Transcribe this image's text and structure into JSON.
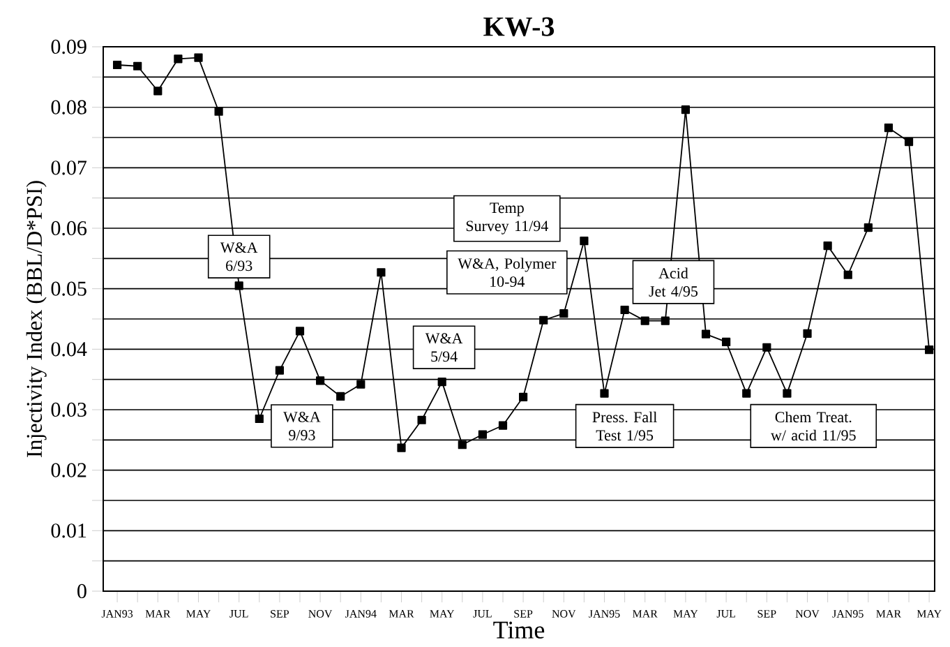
{
  "chart_data": {
    "type": "line",
    "title": "KW-3",
    "xlabel": "Time",
    "ylabel": "Injectivity Index (BBL/D*PSI)",
    "categories": [
      "JAN93",
      null,
      "MAR",
      null,
      "MAY",
      null,
      "JUL",
      null,
      "SEP",
      null,
      "NOV",
      null,
      "JAN94",
      null,
      "MAR",
      null,
      "MAY",
      null,
      "JUL",
      null,
      "SEP",
      null,
      "NOV",
      null,
      "JAN95",
      null,
      "MAR",
      null,
      "MAY",
      null,
      "JUL",
      null,
      "SEP",
      null,
      "NOV",
      null,
      "JAN95",
      null,
      "MAR",
      null,
      "MAY"
    ],
    "series": [
      {
        "color": "#000000",
        "values": [
          0.087,
          0.0868,
          0.0827,
          0.088,
          0.0882,
          0.0793,
          0.0505,
          0.0285,
          0.0365,
          0.043,
          0.0348,
          0.0322,
          0.0342,
          0.0527,
          0.0237,
          0.0283,
          0.0346,
          0.0242,
          0.0259,
          0.0274,
          0.0321,
          0.0448,
          0.0459,
          0.0579,
          0.0327,
          0.0465,
          0.0447,
          0.0447,
          0.0796,
          0.0425,
          0.0412,
          0.0327,
          0.0403,
          0.0327,
          0.0426,
          0.0571,
          0.0523,
          0.0601,
          0.0766,
          0.0743,
          0.0399
        ]
      }
    ],
    "ylim": [
      0,
      0.09
    ],
    "yticks": [
      0,
      {
        "value": 0.005,
        "label": null
      },
      0.01,
      {
        "value": 0.015,
        "label": null
      },
      0.02,
      {
        "value": 0.025,
        "label": null
      },
      0.03,
      {
        "value": 0.035,
        "label": null
      },
      0.04,
      {
        "value": 0.045,
        "label": null
      },
      0.05,
      {
        "value": 0.055,
        "label": null
      },
      0.06,
      {
        "value": 0.065,
        "label": null
      },
      0.07,
      {
        "value": 0.075,
        "label": null
      },
      0.08,
      {
        "value": 0.085,
        "label": null
      },
      0.09
    ],
    "grid": "y",
    "marker": "square",
    "line_style": "solid",
    "annotations": [
      "W&A 6/93",
      "Temp Survey 11/94",
      "W&A, Polymer 10-94",
      "Acid Jet 4/95",
      "W&A 5/94",
      "W&A 9/93",
      "Press. Fall Test 1/95",
      "Chem Treat. w/ acid 11/95"
    ]
  }
}
